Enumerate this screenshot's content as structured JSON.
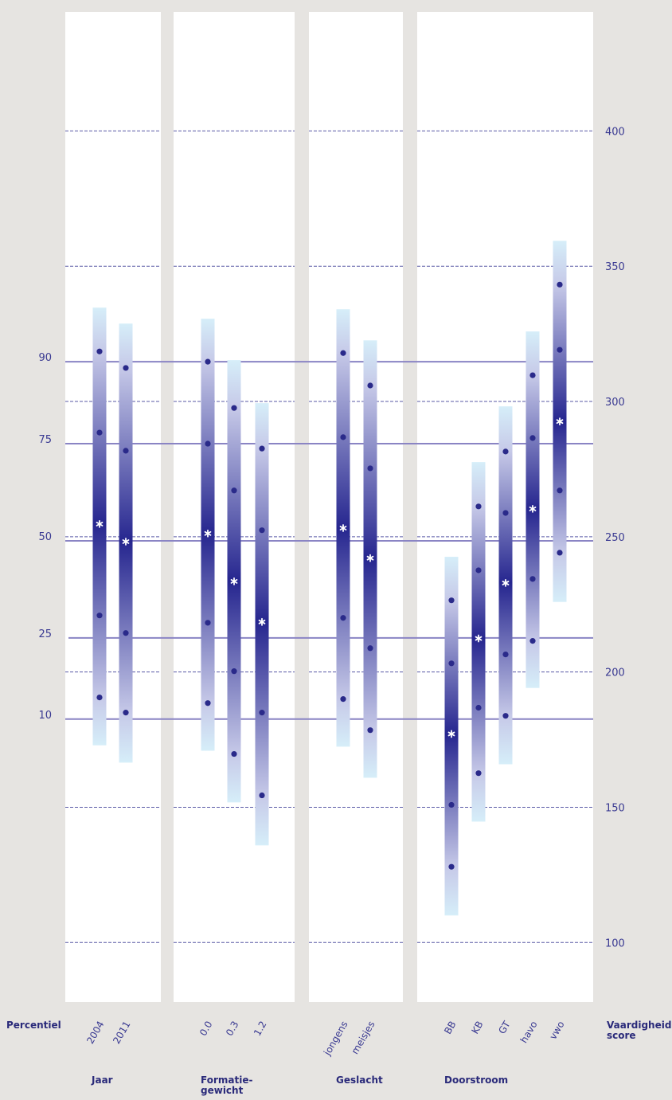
{
  "chart_data": {
    "type": "percentile-bands",
    "percentile_label": "Percentiel",
    "y_axis_label": [
      "Vaardigheids-",
      "score"
    ],
    "ylim": [
      78,
      444
    ],
    "yticks": [
      100,
      150,
      200,
      250,
      300,
      350,
      400
    ],
    "percentile_ticks": [
      {
        "value": 314.7,
        "label": "90"
      },
      {
        "value": 284.4,
        "label": "75"
      },
      {
        "value": 248.5,
        "label": "50"
      },
      {
        "value": 212.6,
        "label": "25"
      },
      {
        "value": 182.6,
        "label": "10"
      }
    ],
    "grid": true,
    "colors": {
      "band_end": "#d6eef9",
      "band_mid": "#c6c9e8",
      "band_center": "#26268f",
      "dot": "#2a2a8a",
      "grid": "#5a5aa6",
      "percentile_line": "#8a84c4"
    },
    "groups": [
      {
        "label": [
          "Jaar"
        ],
        "categories": [
          "2004",
          "2011"
        ],
        "bands": [
          {
            "low": 172.9,
            "p10": 190.6,
            "p25": 220.9,
            "median": 254.7,
            "p75": 288.5,
            "p90": 318.5,
            "high": 334.7
          },
          {
            "low": 166.5,
            "p10": 185.0,
            "p25": 214.4,
            "median": 248.2,
            "p75": 281.8,
            "p90": 312.4,
            "high": 328.8
          }
        ]
      },
      {
        "label": [
          "Formatie-",
          "gewicht"
        ],
        "categories": [
          "0.0",
          "0.3",
          "1.2"
        ],
        "bands": [
          {
            "low": 170.9,
            "p10": 188.5,
            "p25": 218.2,
            "median": 251.2,
            "p75": 284.4,
            "p90": 314.7,
            "high": 330.6
          },
          {
            "low": 151.8,
            "p10": 169.7,
            "p25": 200.3,
            "median": 233.5,
            "p75": 267.1,
            "p90": 297.6,
            "high": 315.3
          },
          {
            "low": 135.9,
            "p10": 154.4,
            "p25": 185.0,
            "median": 218.5,
            "p75": 252.4,
            "p90": 282.6,
            "high": 299.4
          }
        ]
      },
      {
        "label": [
          "Geslacht"
        ],
        "categories": [
          "jongens",
          "meisjes"
        ],
        "bands": [
          {
            "low": 172.4,
            "p10": 190.0,
            "p25": 220.0,
            "median": 253.2,
            "p75": 286.8,
            "p90": 317.9,
            "high": 334.1
          },
          {
            "low": 160.9,
            "p10": 178.5,
            "p25": 208.8,
            "median": 242.1,
            "p75": 275.3,
            "p90": 305.9,
            "high": 322.6
          }
        ]
      },
      {
        "label": [
          "Doorstroom"
        ],
        "categories": [
          "BB",
          "KB",
          "GT",
          "havo",
          "vwo"
        ],
        "bands": [
          {
            "low": 110.0,
            "p10": 128.0,
            "p25": 150.9,
            "median": 177.1,
            "p75": 203.2,
            "p90": 226.5,
            "high": 242.6
          },
          {
            "low": 144.7,
            "p10": 162.6,
            "p25": 186.8,
            "median": 212.4,
            "p75": 237.6,
            "p90": 261.2,
            "high": 277.6
          },
          {
            "low": 165.9,
            "p10": 183.8,
            "p25": 206.5,
            "median": 232.9,
            "p75": 258.8,
            "p90": 281.5,
            "high": 298.2
          },
          {
            "low": 194.1,
            "p10": 211.5,
            "p25": 234.4,
            "median": 260.3,
            "p75": 286.5,
            "p90": 309.7,
            "high": 325.9
          },
          {
            "low": 225.9,
            "p10": 244.1,
            "p25": 267.1,
            "median": 292.6,
            "p75": 319.1,
            "p90": 343.2,
            "high": 359.4
          }
        ]
      }
    ]
  }
}
